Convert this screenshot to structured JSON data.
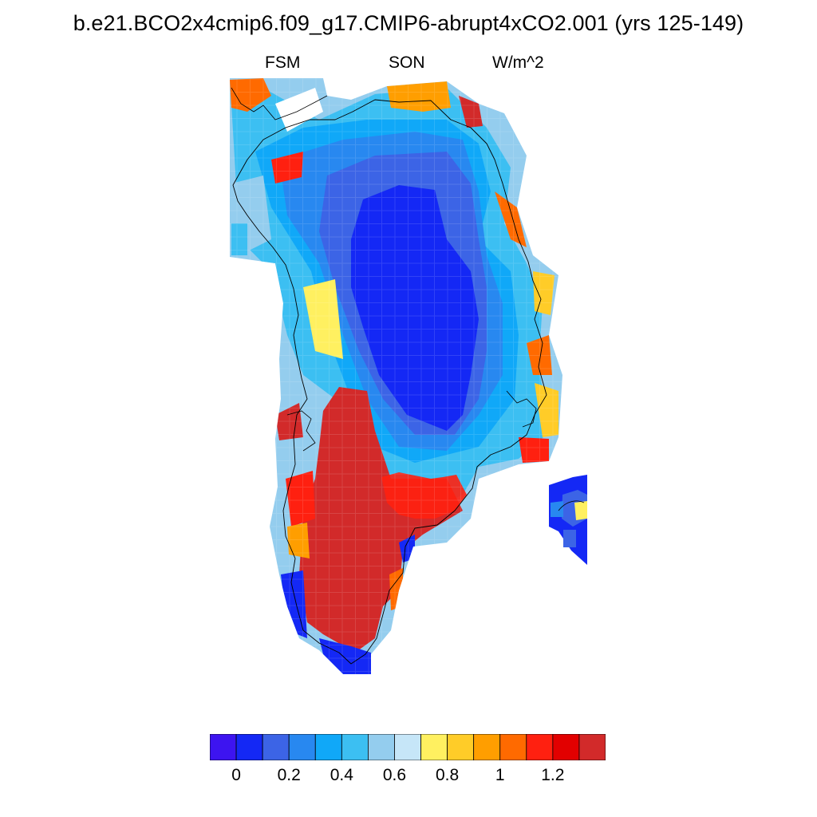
{
  "title": "b.e21.BCO2x4cmip6.f09_g17.CMIP6-abrupt4xCO2.001 (yrs 125-149)",
  "subtitle_left": "FSM",
  "subtitle_center": "SON",
  "subtitle_right": "W/m^2",
  "colorbar": {
    "colors": [
      "#3d14f0",
      "#1428f5",
      "#3c64e6",
      "#2888f0",
      "#10a8f8",
      "#3cbff2",
      "#94cdee",
      "#c6e6f8",
      "#fff060",
      "#ffcc28",
      "#ff9e00",
      "#ff6a00",
      "#ff2010",
      "#e20000",
      "#d22a2a"
    ],
    "tick_labels": [
      "0",
      "0.2",
      "0.4",
      "0.6",
      "0.8",
      "1",
      "1.2"
    ]
  }
}
